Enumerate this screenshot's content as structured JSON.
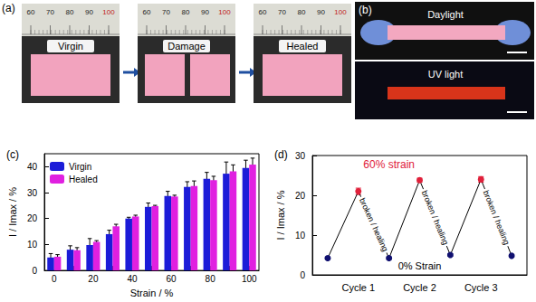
{
  "photo_panels": {
    "a": {
      "label": "(a)",
      "frames": [
        {
          "caption": "Virgin",
          "ruler": [
            "60",
            "70",
            "80",
            "90",
            "100"
          ]
        },
        {
          "caption": "Damage",
          "ruler": [
            "60",
            "70",
            "80",
            "90",
            "100"
          ]
        },
        {
          "caption": "Healed",
          "ruler": [
            "60",
            "70",
            "80",
            "90",
            "100"
          ]
        }
      ]
    },
    "b": {
      "label": "(b)",
      "frames": [
        {
          "caption": "Daylight"
        },
        {
          "caption": "UV light"
        }
      ]
    }
  },
  "chart_data": [
    {
      "type": "bar",
      "title": "(c)",
      "xlabel": "Strain / %",
      "ylabel": "I / Imax / %",
      "categories": [
        0,
        null,
        20,
        null,
        40,
        null,
        60,
        null,
        80,
        null,
        100
      ],
      "series": [
        {
          "name": "Virgin",
          "color": "#1c1cd8",
          "values": [
            5.0,
            8.0,
            9.8,
            14.0,
            20.0,
            24.5,
            28.7,
            32.2,
            35.3,
            37.3,
            39.5
          ],
          "errors": [
            1.5,
            1.5,
            2.5,
            1.5,
            0.5,
            1.5,
            1.8,
            2.0,
            2.5,
            4.5,
            3.0
          ]
        },
        {
          "name": "Healed",
          "color": "#e020e0",
          "values": [
            5.3,
            7.8,
            11.0,
            17.0,
            20.8,
            24.8,
            28.5,
            32.5,
            34.8,
            38.2,
            40.8
          ],
          "errors": [
            0.8,
            1.0,
            0.5,
            0.8,
            0.5,
            0.3,
            0.5,
            2.0,
            1.5,
            2.5,
            2.5
          ]
        }
      ],
      "ylim": [
        0,
        45
      ],
      "yticks": [
        0,
        10,
        20,
        30,
        40
      ],
      "legend": "upper left"
    },
    {
      "type": "line",
      "title": "(d)",
      "ylabel": "I / Imax / %",
      "categories": [
        null,
        "Cycle 1",
        null,
        "Cycle 2",
        null,
        "Cycle 3",
        null
      ],
      "values": [
        4.2,
        21.0,
        4.2,
        23.8,
        5.0,
        24.0,
        4.8
      ],
      "errors": [
        0.3,
        0.8,
        0.3,
        0.5,
        0.3,
        0.7,
        0.3
      ],
      "colors": [
        "#101070",
        "#e0203a",
        "#101070",
        "#e0203a",
        "#101070",
        "#e0203a",
        "#101070"
      ],
      "marker": "circle",
      "line_style": "solid",
      "ylim": [
        0,
        30
      ],
      "yticks": [
        0,
        10,
        20,
        30
      ],
      "annotations": [
        "60% strain",
        "0% Strain",
        "broken / healing",
        "broken / healing",
        "broken / healing"
      ]
    }
  ]
}
